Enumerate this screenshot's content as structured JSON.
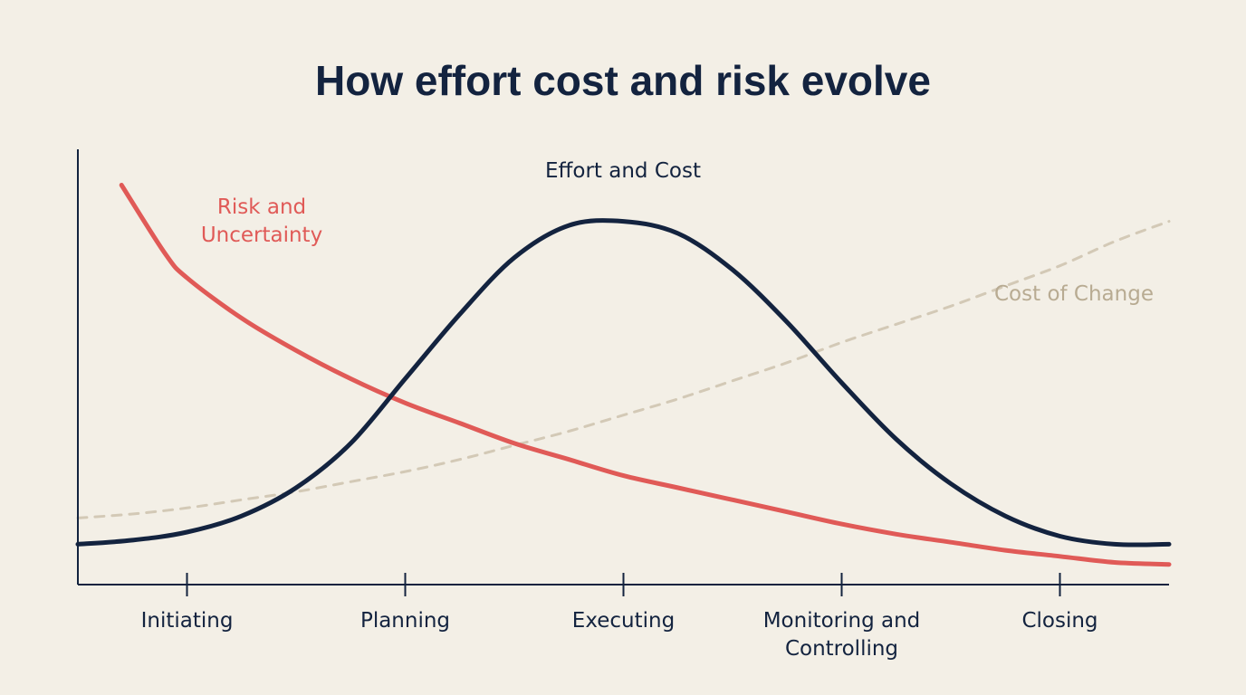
{
  "chart_data": {
    "type": "line",
    "title": "How effort cost and risk evolve",
    "xlabel": "",
    "ylabel": "",
    "categories": [
      "Initiating",
      "Planning",
      "Executing",
      "Monitoring and Controlling",
      "Closing"
    ],
    "category_lines": [
      [
        "Initiating"
      ],
      [
        "Planning"
      ],
      [
        "Executing"
      ],
      [
        "Monitoring and",
        "Controlling"
      ],
      [
        "Closing"
      ]
    ],
    "xlim": [
      -0.5,
      4.5
    ],
    "ylim": [
      0,
      100
    ],
    "grid": false,
    "legend": "none (series labelled directly on chart)",
    "series": [
      {
        "name": "Effort and Cost",
        "label_lines": [
          "Effort and Cost"
        ],
        "color": "#13233f",
        "style": "solid",
        "x": [
          -0.5,
          -0.25,
          0.0,
          0.25,
          0.5,
          0.75,
          1.0,
          1.25,
          1.5,
          1.75,
          2.0,
          2.25,
          2.5,
          2.75,
          3.0,
          3.25,
          3.5,
          3.75,
          4.0,
          4.25,
          4.5
        ],
        "values": [
          10,
          11,
          13,
          17,
          24,
          35,
          51,
          67,
          81,
          89,
          90,
          87,
          78,
          65,
          50,
          36,
          25,
          17,
          12,
          10,
          10
        ]
      },
      {
        "name": "Risk and Uncertainty",
        "label_lines": [
          "Risk and",
          "Uncertainty"
        ],
        "color": "#e05a57",
        "style": "solid",
        "x": [
          -0.3,
          -0.1,
          0.0,
          0.25,
          0.5,
          0.75,
          1.0,
          1.25,
          1.5,
          1.75,
          2.0,
          2.25,
          2.5,
          2.75,
          3.0,
          3.25,
          3.5,
          3.75,
          4.0,
          4.25,
          4.5
        ],
        "values": [
          99,
          82,
          76,
          66,
          58,
          51,
          45,
          40,
          35,
          31,
          27,
          24,
          21,
          18,
          15,
          12.5,
          10.5,
          8.5,
          7,
          5.5,
          5
        ]
      },
      {
        "name": "Cost of Change",
        "label_lines": [
          "Cost of Change"
        ],
        "color": "#d3c9b6",
        "style": "dashed",
        "x": [
          -0.5,
          -0.25,
          0.0,
          0.25,
          0.5,
          0.75,
          1.0,
          1.25,
          1.5,
          1.75,
          2.0,
          2.25,
          2.5,
          2.75,
          3.0,
          3.25,
          3.5,
          3.75,
          4.0,
          4.25,
          4.5
        ],
        "values": [
          16.5,
          17.5,
          19,
          21,
          23,
          25.5,
          28,
          31,
          34.5,
          38,
          42,
          46,
          50.5,
          55,
          60,
          64.5,
          69,
          74,
          79,
          85,
          90
        ]
      }
    ]
  }
}
